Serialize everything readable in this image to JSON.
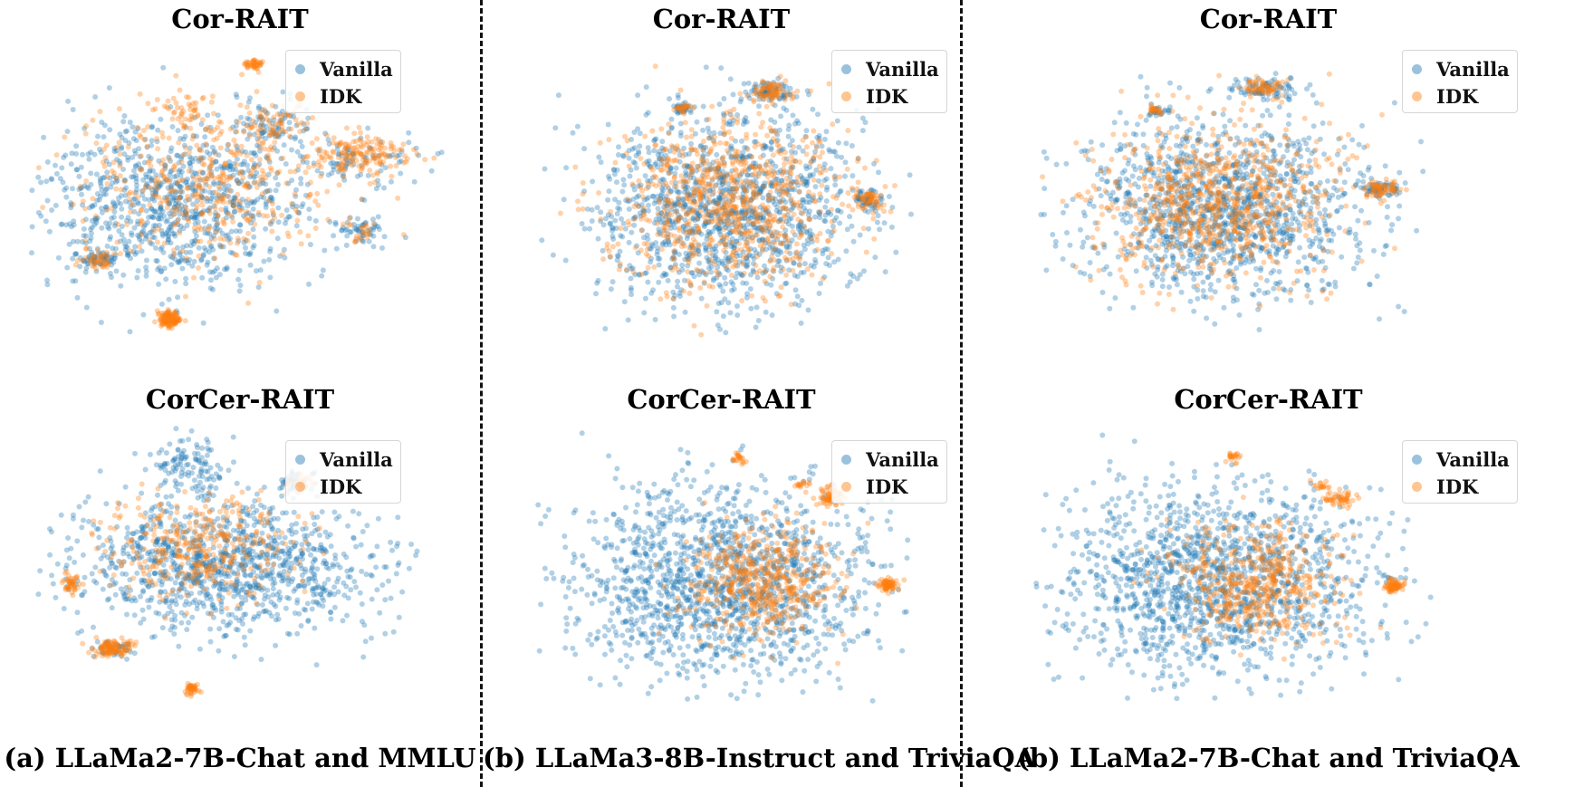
{
  "figure": {
    "columns": [
      {
        "caption": "(a) LLaMa2-7B-Chat and MMLU",
        "panels": [
          {
            "title": "Cor-RAIT",
            "legend": [
              "Vanilla",
              "IDK"
            ]
          },
          {
            "title": "CorCer-RAIT",
            "legend": [
              "Vanilla",
              "IDK"
            ]
          }
        ]
      },
      {
        "caption": "(b) LLaMa3-8B-Instruct and TriviaQA",
        "panels": [
          {
            "title": "Cor-RAIT",
            "legend": [
              "Vanilla",
              "IDK"
            ]
          },
          {
            "title": "CorCer-RAIT",
            "legend": [
              "Vanilla",
              "IDK"
            ]
          }
        ]
      },
      {
        "caption": "(b) LLaMa2-7B-Chat and TriviaQA",
        "panels": [
          {
            "title": "Cor-RAIT",
            "legend": [
              "Vanilla",
              "IDK"
            ]
          },
          {
            "title": "CorCer-RAIT",
            "legend": [
              "Vanilla",
              "IDK"
            ]
          }
        ]
      }
    ]
  },
  "colors": {
    "vanilla": "#1f77b4",
    "idk": "#ff7f0e",
    "divider": "#111111"
  },
  "chart_data": [
    {
      "type": "scatter",
      "title": "Cor-RAIT",
      "subtitle": "(a) LLaMa2-7B-Chat and MMLU",
      "legend_position": "top-right",
      "series": [
        "Vanilla",
        "IDK"
      ],
      "xlabel": "",
      "ylabel": "",
      "axes": "off",
      "clusters": [
        {
          "series": "Vanilla",
          "cx": 0.35,
          "cy": 0.55,
          "sx": 0.17,
          "sy": 0.14,
          "n": 950
        },
        {
          "series": "IDK",
          "cx": 0.42,
          "cy": 0.48,
          "sx": 0.15,
          "sy": 0.12,
          "n": 420
        },
        {
          "series": "IDK",
          "cx": 0.78,
          "cy": 0.38,
          "sx": 0.07,
          "sy": 0.04,
          "n": 160
        },
        {
          "series": "Vanilla",
          "cx": 0.78,
          "cy": 0.4,
          "sx": 0.07,
          "sy": 0.04,
          "n": 80
        },
        {
          "series": "Vanilla",
          "cx": 0.58,
          "cy": 0.28,
          "sx": 0.04,
          "sy": 0.04,
          "n": 80
        },
        {
          "series": "IDK",
          "cx": 0.58,
          "cy": 0.28,
          "sx": 0.04,
          "sy": 0.04,
          "n": 60
        },
        {
          "series": "IDK",
          "cx": 0.33,
          "cy": 0.93,
          "sx": 0.015,
          "sy": 0.015,
          "n": 120
        },
        {
          "series": "Vanilla",
          "cx": 0.16,
          "cy": 0.73,
          "sx": 0.02,
          "sy": 0.015,
          "n": 50
        },
        {
          "series": "IDK",
          "cx": 0.16,
          "cy": 0.73,
          "sx": 0.02,
          "sy": 0.015,
          "n": 40
        },
        {
          "series": "Vanilla",
          "cx": 0.79,
          "cy": 0.64,
          "sx": 0.03,
          "sy": 0.02,
          "n": 50
        },
        {
          "series": "IDK",
          "cx": 0.79,
          "cy": 0.64,
          "sx": 0.02,
          "sy": 0.02,
          "n": 20
        },
        {
          "series": "IDK",
          "cx": 0.53,
          "cy": 0.08,
          "sx": 0.015,
          "sy": 0.01,
          "n": 40
        },
        {
          "series": "IDK",
          "cx": 0.37,
          "cy": 0.23,
          "sx": 0.03,
          "sy": 0.02,
          "n": 40
        }
      ]
    },
    {
      "type": "scatter",
      "title": "CorCer-RAIT",
      "subtitle": "(a) LLaMa2-7B-Chat and MMLU",
      "legend_position": "top-right",
      "series": [
        "Vanilla",
        "IDK"
      ],
      "xlabel": "",
      "ylabel": "",
      "axes": "off",
      "clusters": [
        {
          "series": "Vanilla",
          "cx": 0.48,
          "cy": 0.52,
          "sx": 0.19,
          "sy": 0.12,
          "n": 1100
        },
        {
          "series": "IDK",
          "cx": 0.42,
          "cy": 0.46,
          "sx": 0.12,
          "sy": 0.09,
          "n": 360
        },
        {
          "series": "Vanilla",
          "cx": 0.4,
          "cy": 0.15,
          "sx": 0.05,
          "sy": 0.05,
          "n": 120
        },
        {
          "series": "IDK",
          "cx": 0.2,
          "cy": 0.82,
          "sx": 0.03,
          "sy": 0.015,
          "n": 100
        },
        {
          "series": "Vanilla",
          "cx": 0.2,
          "cy": 0.82,
          "sx": 0.03,
          "sy": 0.015,
          "n": 40
        },
        {
          "series": "IDK",
          "cx": 0.09,
          "cy": 0.58,
          "sx": 0.01,
          "sy": 0.015,
          "n": 40
        },
        {
          "series": "IDK",
          "cx": 0.4,
          "cy": 0.97,
          "sx": 0.01,
          "sy": 0.01,
          "n": 40
        },
        {
          "series": "Vanilla",
          "cx": 0.67,
          "cy": 0.21,
          "sx": 0.03,
          "sy": 0.02,
          "n": 40
        },
        {
          "series": "IDK",
          "cx": 0.67,
          "cy": 0.21,
          "sx": 0.02,
          "sy": 0.015,
          "n": 30
        }
      ]
    },
    {
      "type": "scatter",
      "title": "Cor-RAIT",
      "subtitle": "(b) LLaMa3-8B-Instruct and TriviaQA",
      "legend_position": "top-right",
      "series": [
        "Vanilla",
        "IDK"
      ],
      "xlabel": "",
      "ylabel": "",
      "axes": "off",
      "clusters": [
        {
          "series": "Vanilla",
          "cx": 0.5,
          "cy": 0.55,
          "sx": 0.17,
          "sy": 0.17,
          "n": 1300
        },
        {
          "series": "IDK",
          "cx": 0.5,
          "cy": 0.52,
          "sx": 0.15,
          "sy": 0.15,
          "n": 800
        },
        {
          "series": "Vanilla",
          "cx": 0.87,
          "cy": 0.52,
          "sx": 0.02,
          "sy": 0.02,
          "n": 60
        },
        {
          "series": "IDK",
          "cx": 0.87,
          "cy": 0.52,
          "sx": 0.02,
          "sy": 0.02,
          "n": 50
        },
        {
          "series": "Vanilla",
          "cx": 0.61,
          "cy": 0.13,
          "sx": 0.03,
          "sy": 0.02,
          "n": 80
        },
        {
          "series": "IDK",
          "cx": 0.61,
          "cy": 0.13,
          "sx": 0.03,
          "sy": 0.02,
          "n": 70
        },
        {
          "series": "Vanilla",
          "cx": 0.38,
          "cy": 0.19,
          "sx": 0.012,
          "sy": 0.01,
          "n": 30
        },
        {
          "series": "IDK",
          "cx": 0.38,
          "cy": 0.19,
          "sx": 0.012,
          "sy": 0.01,
          "n": 20
        }
      ]
    },
    {
      "type": "scatter",
      "title": "CorCer-RAIT",
      "subtitle": "(b) LLaMa3-8B-Instruct and TriviaQA",
      "legend_position": "top-right",
      "series": [
        "Vanilla",
        "IDK"
      ],
      "xlabel": "",
      "ylabel": "",
      "axes": "off",
      "clusters": [
        {
          "series": "Vanilla",
          "cx": 0.48,
          "cy": 0.56,
          "sx": 0.2,
          "sy": 0.17,
          "n": 1500
        },
        {
          "series": "IDK",
          "cx": 0.58,
          "cy": 0.56,
          "sx": 0.1,
          "sy": 0.1,
          "n": 500
        },
        {
          "series": "IDK",
          "cx": 0.92,
          "cy": 0.57,
          "sx": 0.012,
          "sy": 0.012,
          "n": 70
        },
        {
          "series": "IDK",
          "cx": 0.77,
          "cy": 0.24,
          "sx": 0.02,
          "sy": 0.02,
          "n": 60
        },
        {
          "series": "IDK",
          "cx": 0.53,
          "cy": 0.1,
          "sx": 0.01,
          "sy": 0.01,
          "n": 20
        },
        {
          "series": "IDK",
          "cx": 0.7,
          "cy": 0.2,
          "sx": 0.01,
          "sy": 0.01,
          "n": 15
        }
      ]
    },
    {
      "type": "scatter",
      "title": "Cor-RAIT",
      "subtitle": "(b) LLaMa2-7B-Chat and TriviaQA",
      "legend_position": "top-right",
      "series": [
        "Vanilla",
        "IDK"
      ],
      "xlabel": "",
      "ylabel": "",
      "axes": "off",
      "clusters": [
        {
          "series": "Vanilla",
          "cx": 0.47,
          "cy": 0.55,
          "sx": 0.18,
          "sy": 0.16,
          "n": 1300
        },
        {
          "series": "IDK",
          "cx": 0.47,
          "cy": 0.52,
          "sx": 0.16,
          "sy": 0.14,
          "n": 800
        },
        {
          "series": "Vanilla",
          "cx": 0.59,
          "cy": 0.12,
          "sx": 0.04,
          "sy": 0.02,
          "n": 80
        },
        {
          "series": "IDK",
          "cx": 0.59,
          "cy": 0.12,
          "sx": 0.03,
          "sy": 0.02,
          "n": 60
        },
        {
          "series": "Vanilla",
          "cx": 0.89,
          "cy": 0.48,
          "sx": 0.025,
          "sy": 0.015,
          "n": 60
        },
        {
          "series": "IDK",
          "cx": 0.89,
          "cy": 0.48,
          "sx": 0.025,
          "sy": 0.015,
          "n": 60
        },
        {
          "series": "Vanilla",
          "cx": 0.31,
          "cy": 0.2,
          "sx": 0.012,
          "sy": 0.01,
          "n": 25
        },
        {
          "series": "IDK",
          "cx": 0.31,
          "cy": 0.2,
          "sx": 0.012,
          "sy": 0.01,
          "n": 20
        }
      ]
    },
    {
      "type": "scatter",
      "title": "CorCer-RAIT",
      "subtitle": "(b) LLaMa2-7B-Chat and TriviaQA",
      "legend_position": "top-right",
      "series": [
        "Vanilla",
        "IDK"
      ],
      "xlabel": "",
      "ylabel": "",
      "axes": "off",
      "clusters": [
        {
          "series": "Vanilla",
          "cx": 0.45,
          "cy": 0.56,
          "sx": 0.2,
          "sy": 0.17,
          "n": 1500
        },
        {
          "series": "IDK",
          "cx": 0.55,
          "cy": 0.56,
          "sx": 0.1,
          "sy": 0.1,
          "n": 500
        },
        {
          "series": "IDK",
          "cx": 0.9,
          "cy": 0.57,
          "sx": 0.012,
          "sy": 0.012,
          "n": 70
        },
        {
          "series": "IDK",
          "cx": 0.76,
          "cy": 0.25,
          "sx": 0.02,
          "sy": 0.02,
          "n": 50
        },
        {
          "series": "IDK",
          "cx": 0.5,
          "cy": 0.1,
          "sx": 0.01,
          "sy": 0.01,
          "n": 20
        },
        {
          "series": "IDK",
          "cx": 0.72,
          "cy": 0.2,
          "sx": 0.01,
          "sy": 0.01,
          "n": 15
        }
      ]
    }
  ]
}
